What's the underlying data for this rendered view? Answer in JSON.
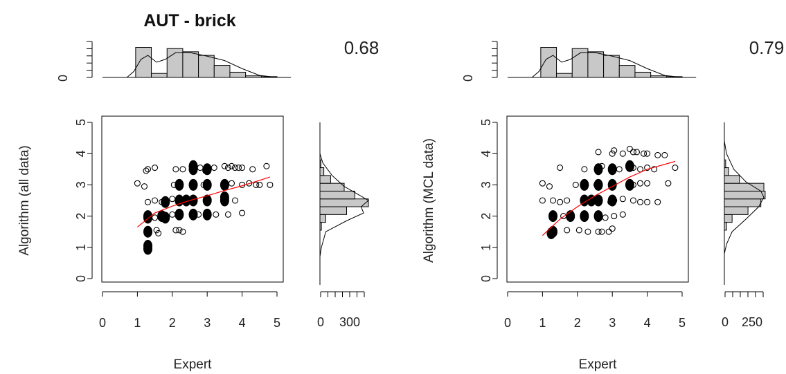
{
  "chart_data": [
    {
      "type": "scatter",
      "title": "AUT - brick",
      "xlabel": "Expert",
      "ylabel": "Algorithm (all data)",
      "correlation": "0.68",
      "xlim": [
        0,
        5
      ],
      "ylim": [
        0,
        5
      ],
      "x_ticks": [
        "0",
        "1",
        "2",
        "3",
        "4",
        "5"
      ],
      "y_ticks": [
        "0",
        "1",
        "2",
        "3",
        "4",
        "5"
      ],
      "top_hist_y_ticks": [
        "0"
      ],
      "right_hist_x_ticks": [
        "0",
        "300"
      ],
      "trend_color": "#ff0000",
      "trend_line": [
        [
          1.0,
          1.65
        ],
        [
          1.5,
          2.1
        ],
        [
          2.0,
          2.32
        ],
        [
          2.5,
          2.5
        ],
        [
          3.0,
          2.65
        ],
        [
          3.5,
          2.82
        ],
        [
          4.0,
          2.97
        ],
        [
          4.8,
          3.25
        ]
      ],
      "points": [
        {
          "x": 1.0,
          "y": 3.05,
          "f": 0
        },
        {
          "x": 1.2,
          "y": 2.95,
          "f": 0
        },
        {
          "x": 1.25,
          "y": 3.45,
          "f": 0
        },
        {
          "x": 1.3,
          "y": 3.5,
          "f": 0
        },
        {
          "x": 1.5,
          "y": 3.55,
          "f": 0
        },
        {
          "x": 1.3,
          "y": 2.45,
          "f": 0
        },
        {
          "x": 1.5,
          "y": 2.5,
          "f": 0
        },
        {
          "x": 1.5,
          "y": 1.95,
          "f": 0
        },
        {
          "x": 1.55,
          "y": 1.55,
          "f": 0
        },
        {
          "x": 1.6,
          "y": 1.45,
          "f": 0
        },
        {
          "x": 1.7,
          "y": 2.45,
          "f": 0
        },
        {
          "x": 1.75,
          "y": 2.05,
          "f": 0
        },
        {
          "x": 2.0,
          "y": 2.05,
          "f": 0
        },
        {
          "x": 2.0,
          "y": 2.55,
          "f": 0
        },
        {
          "x": 2.05,
          "y": 3.0,
          "f": 0
        },
        {
          "x": 2.1,
          "y": 3.5,
          "f": 0
        },
        {
          "x": 2.1,
          "y": 1.55,
          "f": 0
        },
        {
          "x": 2.2,
          "y": 1.55,
          "f": 0
        },
        {
          "x": 2.3,
          "y": 1.5,
          "f": 0
        },
        {
          "x": 2.3,
          "y": 3.5,
          "f": 0
        },
        {
          "x": 2.8,
          "y": 3.55,
          "f": 0
        },
        {
          "x": 2.95,
          "y": 3.45,
          "f": 0
        },
        {
          "x": 3.2,
          "y": 3.55,
          "f": 0
        },
        {
          "x": 3.5,
          "y": 3.6,
          "f": 0
        },
        {
          "x": 3.6,
          "y": 3.55,
          "f": 0
        },
        {
          "x": 3.7,
          "y": 3.6,
          "f": 0
        },
        {
          "x": 3.8,
          "y": 3.55,
          "f": 0
        },
        {
          "x": 3.9,
          "y": 3.55,
          "f": 0
        },
        {
          "x": 4.0,
          "y": 3.55,
          "f": 0
        },
        {
          "x": 4.3,
          "y": 3.5,
          "f": 0
        },
        {
          "x": 4.7,
          "y": 3.6,
          "f": 0
        },
        {
          "x": 4.0,
          "y": 3.0,
          "f": 0
        },
        {
          "x": 4.2,
          "y": 3.05,
          "f": 0
        },
        {
          "x": 4.4,
          "y": 3.0,
          "f": 0
        },
        {
          "x": 4.5,
          "y": 3.0,
          "f": 0
        },
        {
          "x": 4.8,
          "y": 3.0,
          "f": 0
        },
        {
          "x": 3.8,
          "y": 2.5,
          "f": 0
        },
        {
          "x": 4.0,
          "y": 2.1,
          "f": 0
        },
        {
          "x": 3.6,
          "y": 2.05,
          "f": 0
        },
        {
          "x": 3.25,
          "y": 2.05,
          "f": 0
        },
        {
          "x": 2.75,
          "y": 2.05,
          "f": 0
        },
        {
          "x": 2.9,
          "y": 3.0,
          "f": 0
        },
        {
          "x": 3.7,
          "y": 3.05,
          "f": 0
        },
        {
          "x": 1.3,
          "y": 1.95,
          "f": 1
        },
        {
          "x": 1.3,
          "y": 2.0,
          "f": 1
        },
        {
          "x": 1.3,
          "y": 1.5,
          "f": 1
        },
        {
          "x": 1.3,
          "y": 1.05,
          "f": 1
        },
        {
          "x": 1.3,
          "y": 0.95,
          "f": 1
        },
        {
          "x": 1.8,
          "y": 1.95,
          "f": 1
        },
        {
          "x": 1.8,
          "y": 2.45,
          "f": 1
        },
        {
          "x": 2.2,
          "y": 2.05,
          "f": 1
        },
        {
          "x": 2.2,
          "y": 2.5,
          "f": 1
        },
        {
          "x": 2.2,
          "y": 3.0,
          "f": 1
        },
        {
          "x": 2.6,
          "y": 2.05,
          "f": 1
        },
        {
          "x": 2.6,
          "y": 2.5,
          "f": 1
        },
        {
          "x": 2.6,
          "y": 3.0,
          "f": 1
        },
        {
          "x": 2.6,
          "y": 3.5,
          "f": 1
        },
        {
          "x": 2.6,
          "y": 3.6,
          "f": 1
        },
        {
          "x": 3.0,
          "y": 2.05,
          "f": 1
        },
        {
          "x": 3.0,
          "y": 2.5,
          "f": 1
        },
        {
          "x": 3.0,
          "y": 3.0,
          "f": 1
        },
        {
          "x": 3.0,
          "y": 3.5,
          "f": 1
        },
        {
          "x": 3.5,
          "y": 2.5,
          "f": 1
        },
        {
          "x": 3.5,
          "y": 2.6,
          "f": 1
        },
        {
          "x": 3.5,
          "y": 3.0,
          "f": 1
        },
        {
          "x": 2.4,
          "y": 2.5,
          "f": 1
        },
        {
          "x": 1.7,
          "y": 2.0,
          "f": 1
        }
      ],
      "top_hist": [
        0.75,
        0.1,
        0.72,
        0.64,
        0.55,
        0.3,
        0.13,
        0.04,
        0.02
      ],
      "top_density": [
        [
          0.7,
          0.0
        ],
        [
          0.9,
          0.15
        ],
        [
          1.1,
          0.45
        ],
        [
          1.3,
          0.55
        ],
        [
          1.55,
          0.38
        ],
        [
          1.8,
          0.45
        ],
        [
          2.1,
          0.62
        ],
        [
          2.5,
          0.62
        ],
        [
          3.0,
          0.53
        ],
        [
          3.5,
          0.42
        ],
        [
          4.0,
          0.22
        ],
        [
          4.5,
          0.05
        ],
        [
          5.0,
          0.0
        ]
      ],
      "right_hist": [
        0.0,
        0.0,
        0.03,
        0.12,
        0.55,
        1.0,
        0.72,
        0.5,
        0.22,
        0.08,
        0.02
      ],
      "right_density": [
        [
          0.7,
          0.0
        ],
        [
          1.0,
          0.03
        ],
        [
          1.5,
          0.12
        ],
        [
          1.85,
          0.55
        ],
        [
          2.1,
          0.9
        ],
        [
          2.3,
          0.85
        ],
        [
          2.5,
          1.0
        ],
        [
          2.7,
          0.78
        ],
        [
          2.95,
          0.5
        ],
        [
          3.3,
          0.25
        ],
        [
          3.7,
          0.06
        ],
        [
          4.0,
          0.0
        ]
      ]
    },
    {
      "type": "scatter",
      "title": "",
      "xlabel": "Expert",
      "ylabel": "Algorithm (MCL data)",
      "correlation": "0.79",
      "xlim": [
        0,
        5
      ],
      "ylim": [
        0,
        5
      ],
      "x_ticks": [
        "0",
        "1",
        "2",
        "3",
        "4",
        "5"
      ],
      "y_ticks": [
        "0",
        "1",
        "2",
        "3",
        "4",
        "5"
      ],
      "top_hist_y_ticks": [
        "0"
      ],
      "right_hist_x_ticks": [
        "0",
        "250"
      ],
      "trend_color": "#ff0000",
      "trend_line": [
        [
          1.0,
          1.38
        ],
        [
          1.5,
          1.9
        ],
        [
          2.0,
          2.3
        ],
        [
          2.5,
          2.65
        ],
        [
          3.0,
          2.95
        ],
        [
          3.5,
          3.25
        ],
        [
          4.0,
          3.5
        ],
        [
          4.8,
          3.75
        ]
      ],
      "points": [
        {
          "x": 1.0,
          "y": 3.05,
          "f": 0
        },
        {
          "x": 1.2,
          "y": 2.95,
          "f": 0
        },
        {
          "x": 1.5,
          "y": 3.55,
          "f": 0
        },
        {
          "x": 1.3,
          "y": 2.5,
          "f": 0
        },
        {
          "x": 1.0,
          "y": 2.5,
          "f": 0
        },
        {
          "x": 1.5,
          "y": 2.45,
          "f": 0
        },
        {
          "x": 1.6,
          "y": 2.0,
          "f": 0
        },
        {
          "x": 1.7,
          "y": 2.5,
          "f": 0
        },
        {
          "x": 1.7,
          "y": 1.55,
          "f": 0
        },
        {
          "x": 1.95,
          "y": 3.0,
          "f": 0
        },
        {
          "x": 2.05,
          "y": 1.55,
          "f": 0
        },
        {
          "x": 2.3,
          "y": 1.5,
          "f": 0
        },
        {
          "x": 2.2,
          "y": 3.5,
          "f": 0
        },
        {
          "x": 2.55,
          "y": 3.0,
          "f": 0
        },
        {
          "x": 2.6,
          "y": 3.45,
          "f": 0
        },
        {
          "x": 2.7,
          "y": 3.6,
          "f": 0
        },
        {
          "x": 2.6,
          "y": 1.5,
          "f": 0
        },
        {
          "x": 2.7,
          "y": 1.5,
          "f": 0
        },
        {
          "x": 2.9,
          "y": 1.5,
          "f": 0
        },
        {
          "x": 3.0,
          "y": 1.6,
          "f": 0
        },
        {
          "x": 2.8,
          "y": 1.95,
          "f": 0
        },
        {
          "x": 3.05,
          "y": 2.0,
          "f": 0
        },
        {
          "x": 3.3,
          "y": 2.05,
          "f": 0
        },
        {
          "x": 2.95,
          "y": 2.45,
          "f": 0
        },
        {
          "x": 3.05,
          "y": 2.5,
          "f": 0
        },
        {
          "x": 3.3,
          "y": 2.55,
          "f": 0
        },
        {
          "x": 3.6,
          "y": 2.5,
          "f": 0
        },
        {
          "x": 3.8,
          "y": 2.45,
          "f": 0
        },
        {
          "x": 4.0,
          "y": 2.45,
          "f": 0
        },
        {
          "x": 4.3,
          "y": 2.45,
          "f": 0
        },
        {
          "x": 3.6,
          "y": 3.0,
          "f": 0
        },
        {
          "x": 3.8,
          "y": 3.05,
          "f": 0
        },
        {
          "x": 4.0,
          "y": 3.05,
          "f": 0
        },
        {
          "x": 4.6,
          "y": 3.05,
          "f": 0
        },
        {
          "x": 3.2,
          "y": 3.5,
          "f": 0
        },
        {
          "x": 3.6,
          "y": 3.55,
          "f": 0
        },
        {
          "x": 3.8,
          "y": 3.5,
          "f": 0
        },
        {
          "x": 4.0,
          "y": 3.55,
          "f": 0
        },
        {
          "x": 4.2,
          "y": 3.5,
          "f": 0
        },
        {
          "x": 4.8,
          "y": 3.55,
          "f": 0
        },
        {
          "x": 2.6,
          "y": 4.05,
          "f": 0
        },
        {
          "x": 3.0,
          "y": 4.0,
          "f": 0
        },
        {
          "x": 3.05,
          "y": 4.1,
          "f": 0
        },
        {
          "x": 3.3,
          "y": 4.0,
          "f": 0
        },
        {
          "x": 3.5,
          "y": 4.15,
          "f": 0
        },
        {
          "x": 3.6,
          "y": 4.05,
          "f": 0
        },
        {
          "x": 3.7,
          "y": 4.05,
          "f": 0
        },
        {
          "x": 3.9,
          "y": 4.0,
          "f": 0
        },
        {
          "x": 4.0,
          "y": 4.0,
          "f": 0
        },
        {
          "x": 4.3,
          "y": 3.95,
          "f": 0
        },
        {
          "x": 4.5,
          "y": 3.95,
          "f": 0
        },
        {
          "x": 1.3,
          "y": 1.5,
          "f": 1
        },
        {
          "x": 1.3,
          "y": 2.0,
          "f": 1
        },
        {
          "x": 1.8,
          "y": 2.0,
          "f": 1
        },
        {
          "x": 2.2,
          "y": 2.0,
          "f": 1
        },
        {
          "x": 2.2,
          "y": 2.5,
          "f": 1
        },
        {
          "x": 2.2,
          "y": 3.0,
          "f": 1
        },
        {
          "x": 2.6,
          "y": 2.0,
          "f": 1
        },
        {
          "x": 2.6,
          "y": 2.5,
          "f": 1
        },
        {
          "x": 2.6,
          "y": 3.0,
          "f": 1
        },
        {
          "x": 2.6,
          "y": 3.5,
          "f": 1
        },
        {
          "x": 3.0,
          "y": 2.5,
          "f": 1
        },
        {
          "x": 3.0,
          "y": 3.0,
          "f": 1
        },
        {
          "x": 3.0,
          "y": 3.5,
          "f": 1
        },
        {
          "x": 3.5,
          "y": 3.0,
          "f": 1
        },
        {
          "x": 3.5,
          "y": 3.6,
          "f": 1
        },
        {
          "x": 2.4,
          "y": 2.5,
          "f": 1
        },
        {
          "x": 1.25,
          "y": 1.45,
          "f": 1
        }
      ],
      "top_hist": [
        0.75,
        0.1,
        0.72,
        0.64,
        0.55,
        0.3,
        0.13,
        0.04,
        0.02
      ],
      "top_density": [
        [
          0.7,
          0.0
        ],
        [
          0.9,
          0.15
        ],
        [
          1.1,
          0.45
        ],
        [
          1.3,
          0.55
        ],
        [
          1.55,
          0.38
        ],
        [
          1.8,
          0.45
        ],
        [
          2.1,
          0.62
        ],
        [
          2.5,
          0.62
        ],
        [
          3.0,
          0.53
        ],
        [
          3.5,
          0.42
        ],
        [
          4.0,
          0.22
        ],
        [
          4.5,
          0.05
        ],
        [
          5.0,
          0.0
        ]
      ],
      "right_hist": [
        0.0,
        0.0,
        0.05,
        0.18,
        0.55,
        0.85,
        0.95,
        0.92,
        0.35,
        0.1,
        0.03
      ],
      "right_density": [
        [
          0.8,
          0.0
        ],
        [
          1.1,
          0.05
        ],
        [
          1.5,
          0.18
        ],
        [
          1.9,
          0.5
        ],
        [
          2.3,
          0.8
        ],
        [
          2.6,
          0.92
        ],
        [
          2.8,
          0.85
        ],
        [
          3.1,
          0.5
        ],
        [
          3.5,
          0.22
        ],
        [
          4.0,
          0.05
        ],
        [
          4.4,
          0.0
        ]
      ]
    }
  ]
}
